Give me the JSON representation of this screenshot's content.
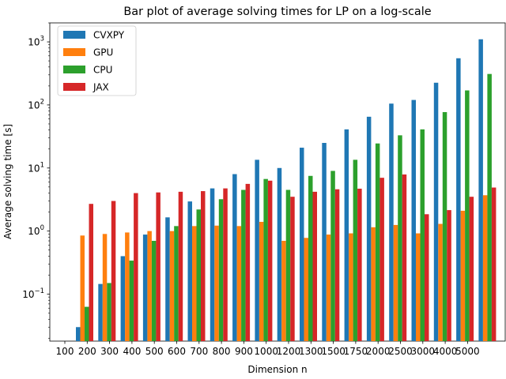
{
  "chart_data": {
    "type": "bar",
    "title": "Bar plot of average solving times for LP on a log-scale",
    "xlabel": "Dimension n",
    "ylabel": "Average solving time [s]",
    "yscale": "log",
    "ylim": [
      0.018,
      2000
    ],
    "yticks": [
      {
        "value": 0.1,
        "base": "10",
        "exp": "−1"
      },
      {
        "value": 1,
        "base": "10",
        "exp": "0"
      },
      {
        "value": 10,
        "base": "10",
        "exp": "1"
      },
      {
        "value": 100,
        "base": "10",
        "exp": "2"
      },
      {
        "value": 1000,
        "base": "10",
        "exp": "3"
      }
    ],
    "categories": [
      "100",
      "200",
      "300",
      "400",
      "500",
      "600",
      "700",
      "800",
      "900",
      "1000",
      "1200",
      "1300",
      "1500",
      "1750",
      "2000",
      "2500",
      "3000",
      "4000",
      "5000"
    ],
    "legend_position": "top-left",
    "grid": false,
    "series": [
      {
        "name": "CVXPY",
        "color": "#1f77b4",
        "values": [
          0.03,
          0.145,
          0.4,
          0.88,
          1.65,
          2.95,
          4.75,
          8.0,
          13.5,
          10.0,
          21.0,
          25.0,
          41.0,
          65.0,
          105.0,
          120.0,
          225.0,
          550.0,
          1100.0
        ]
      },
      {
        "name": "GPU",
        "color": "#ff7f0e",
        "values": [
          0.85,
          0.9,
          0.95,
          1.0,
          1.0,
          1.2,
          1.22,
          1.2,
          1.4,
          0.7,
          0.78,
          0.88,
          0.92,
          1.15,
          1.25,
          0.92,
          1.3,
          2.1,
          3.7
        ]
      },
      {
        "name": "CPU",
        "color": "#2ca02c",
        "values": [
          0.063,
          0.15,
          0.34,
          0.7,
          1.2,
          2.2,
          3.2,
          4.5,
          6.7,
          4.5,
          7.5,
          9.0,
          13.5,
          24.5,
          33.0,
          41.0,
          77.0,
          170.0,
          310.0
        ]
      },
      {
        "name": "JAX",
        "color": "#d62728",
        "values": [
          2.7,
          3.0,
          4.0,
          4.1,
          4.2,
          4.3,
          4.75,
          5.6,
          6.3,
          3.5,
          4.2,
          4.6,
          4.7,
          7.0,
          7.9,
          1.85,
          2.15,
          3.5,
          4.9
        ]
      }
    ]
  }
}
